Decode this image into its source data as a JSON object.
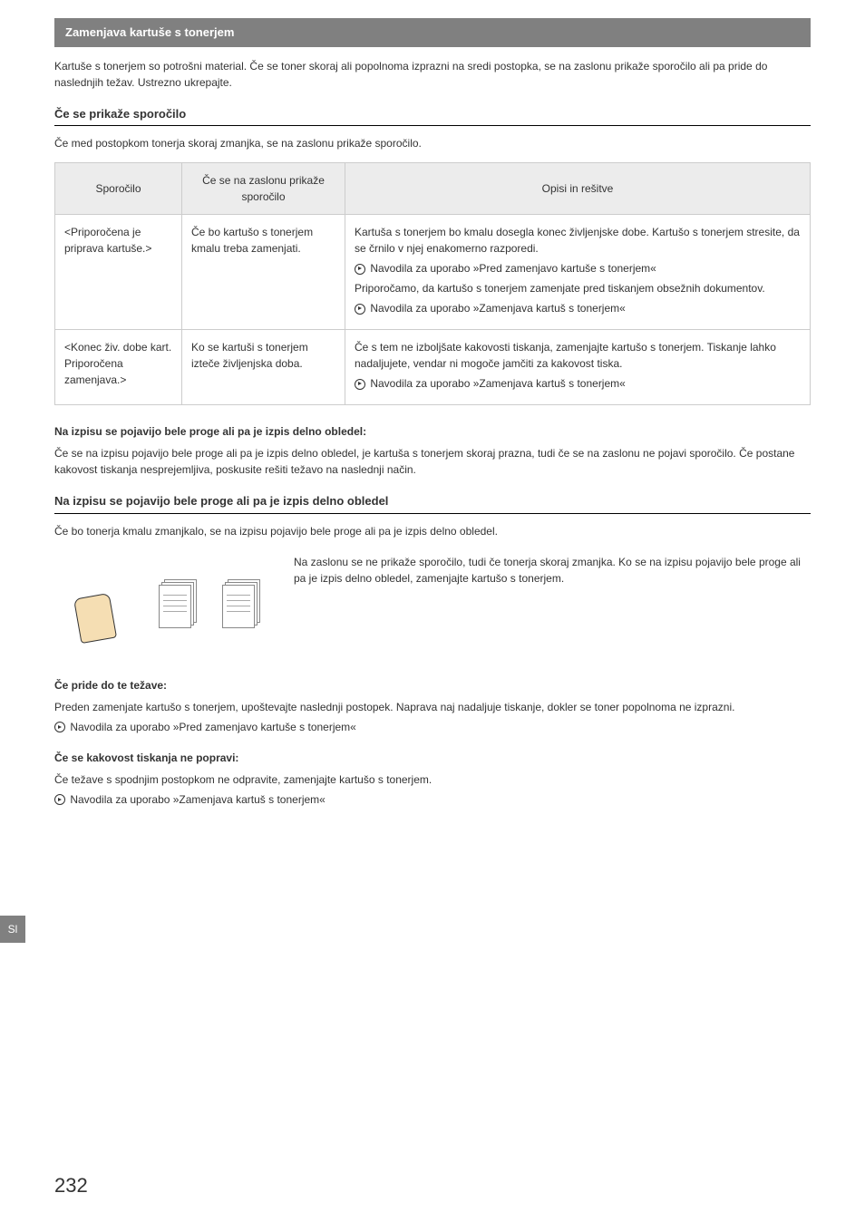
{
  "section_header": "Zamenjava kartuše s tonerjem",
  "intro": "Kartuše s tonerjem so potrošni material. Če se toner skoraj ali popolnoma izprazni na sredi postopka, se na zaslonu prikaže sporočilo ali pa pride do naslednjih težav. Ustrezno ukrepajte.",
  "heading1": "Če se prikaže sporočilo",
  "heading1_sub": "Če med postopkom tonerja skoraj zmanjka, se na zaslonu prikaže sporočilo.",
  "table": {
    "headers": [
      "Sporočilo",
      "Če se na zaslonu prikaže sporočilo",
      "Opisi in rešitve"
    ],
    "rows": [
      {
        "c1": "<Priporočena je priprava kartuše.>",
        "c2": "Če bo kartušo s tonerjem kmalu treba zamenjati.",
        "c3_lines": [
          {
            "text": "Kartuša s tonerjem bo kmalu dosegla konec življenjske dobe. Kartušo s tonerjem stresite, da se črnilo v njej enakomerno razporedi.",
            "arrow": false
          },
          {
            "text": "Navodila za uporabo »Pred zamenjavo kartuše s tonerjem«",
            "arrow": true
          },
          {
            "text": "Priporočamo, da kartušo s tonerjem zamenjate pred tiskanjem obsežnih dokumentov.",
            "arrow": false
          },
          {
            "text": "Navodila za uporabo »Zamenjava kartuš s tonerjem«",
            "arrow": true
          }
        ]
      },
      {
        "c1": "<Konec živ. dobe kart. Priporočena zamenjava.>",
        "c2": "Ko se kartuši s tonerjem izteče življenjska doba.",
        "c3_lines": [
          {
            "text": "Če s tem ne izboljšate kakovosti tiskanja, zamenjajte kartušo s tonerjem. Tiskanje lahko nadaljujete, vendar ni mogoče jamčiti za kakovost tiska.",
            "arrow": false
          },
          {
            "text": "Navodila za uporabo »Zamenjava kartuš s tonerjem«",
            "arrow": true
          }
        ]
      }
    ]
  },
  "bold1": "Na izpisu se pojavijo bele proge ali pa je izpis delno obledel:",
  "p1": "Če se na izpisu pojavijo bele proge ali pa je izpis delno obledel, je kartuša s tonerjem skoraj prazna, tudi če se na zaslonu ne pojavi sporočilo. Če postane kakovost tiskanja nesprejemljiva, poskusite rešiti težavo na naslednji način.",
  "heading2": "Na izpisu se pojavijo bele proge ali pa je izpis delno obledel",
  "heading2_sub": "Če bo tonerja kmalu zmanjkalo, se na izpisu pojavijo bele proge ali pa je izpis delno obledel.",
  "img_caption": "Na zaslonu se ne prikaže sporočilo, tudi če tonerja skoraj zmanjka. Ko se na izpisu pojavijo bele proge ali pa je izpis delno obledel, zamenjajte kartušo s tonerjem.",
  "bold2": "Če pride do te težave:",
  "p2": "Preden zamenjate kartušo s tonerjem, upoštevajte naslednji postopek. Naprava naj nadaljuje tiskanje, dokler se toner popolnoma ne izprazni.",
  "link2": "Navodila za uporabo »Pred zamenjavo kartuše s tonerjem«",
  "bold3": "Če se kakovost tiskanja ne popravi:",
  "p3": "Če težave s spodnjim postopkom ne odpravite, zamenjajte kartušo s tonerjem.",
  "link3": "Navodila za uporabo »Zamenjava kartuš s tonerjem«",
  "side_tab": "Sl",
  "page_number": "232"
}
